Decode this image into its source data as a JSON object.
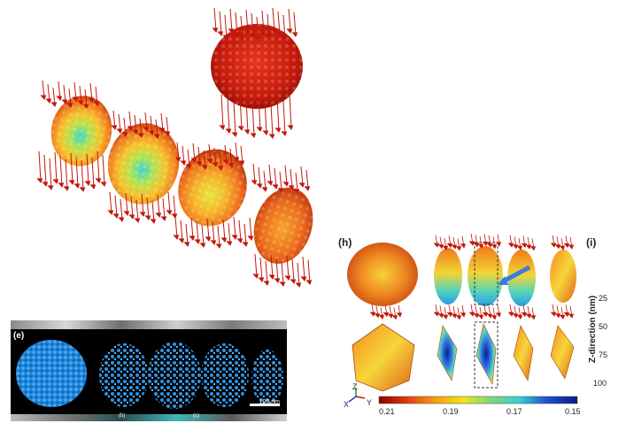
{
  "panel_e": {
    "label": "(e)",
    "scale": "100 nm"
  },
  "panel_h": {
    "label": "(h)"
  },
  "panel_i": {
    "label": "(i)"
  },
  "z_axis": {
    "title": "Z-direction (nm)",
    "ticks": [
      "25",
      "50",
      "75",
      "100"
    ]
  },
  "colorbar": {
    "ticks": [
      "0.21",
      "0.19",
      "0.17",
      "0.15"
    ],
    "colors": [
      "#8b0000",
      "#e33a0e",
      "#f39c12",
      "#f1e31b",
      "#7fd67a",
      "#2fd1d1",
      "#1d4fd6",
      "#081a8a"
    ]
  },
  "axes_gizmo": {
    "z": "Z",
    "x": "X",
    "y": "Y"
  },
  "bottom_strip": {
    "labels": [
      "(b)",
      "(c)"
    ]
  }
}
